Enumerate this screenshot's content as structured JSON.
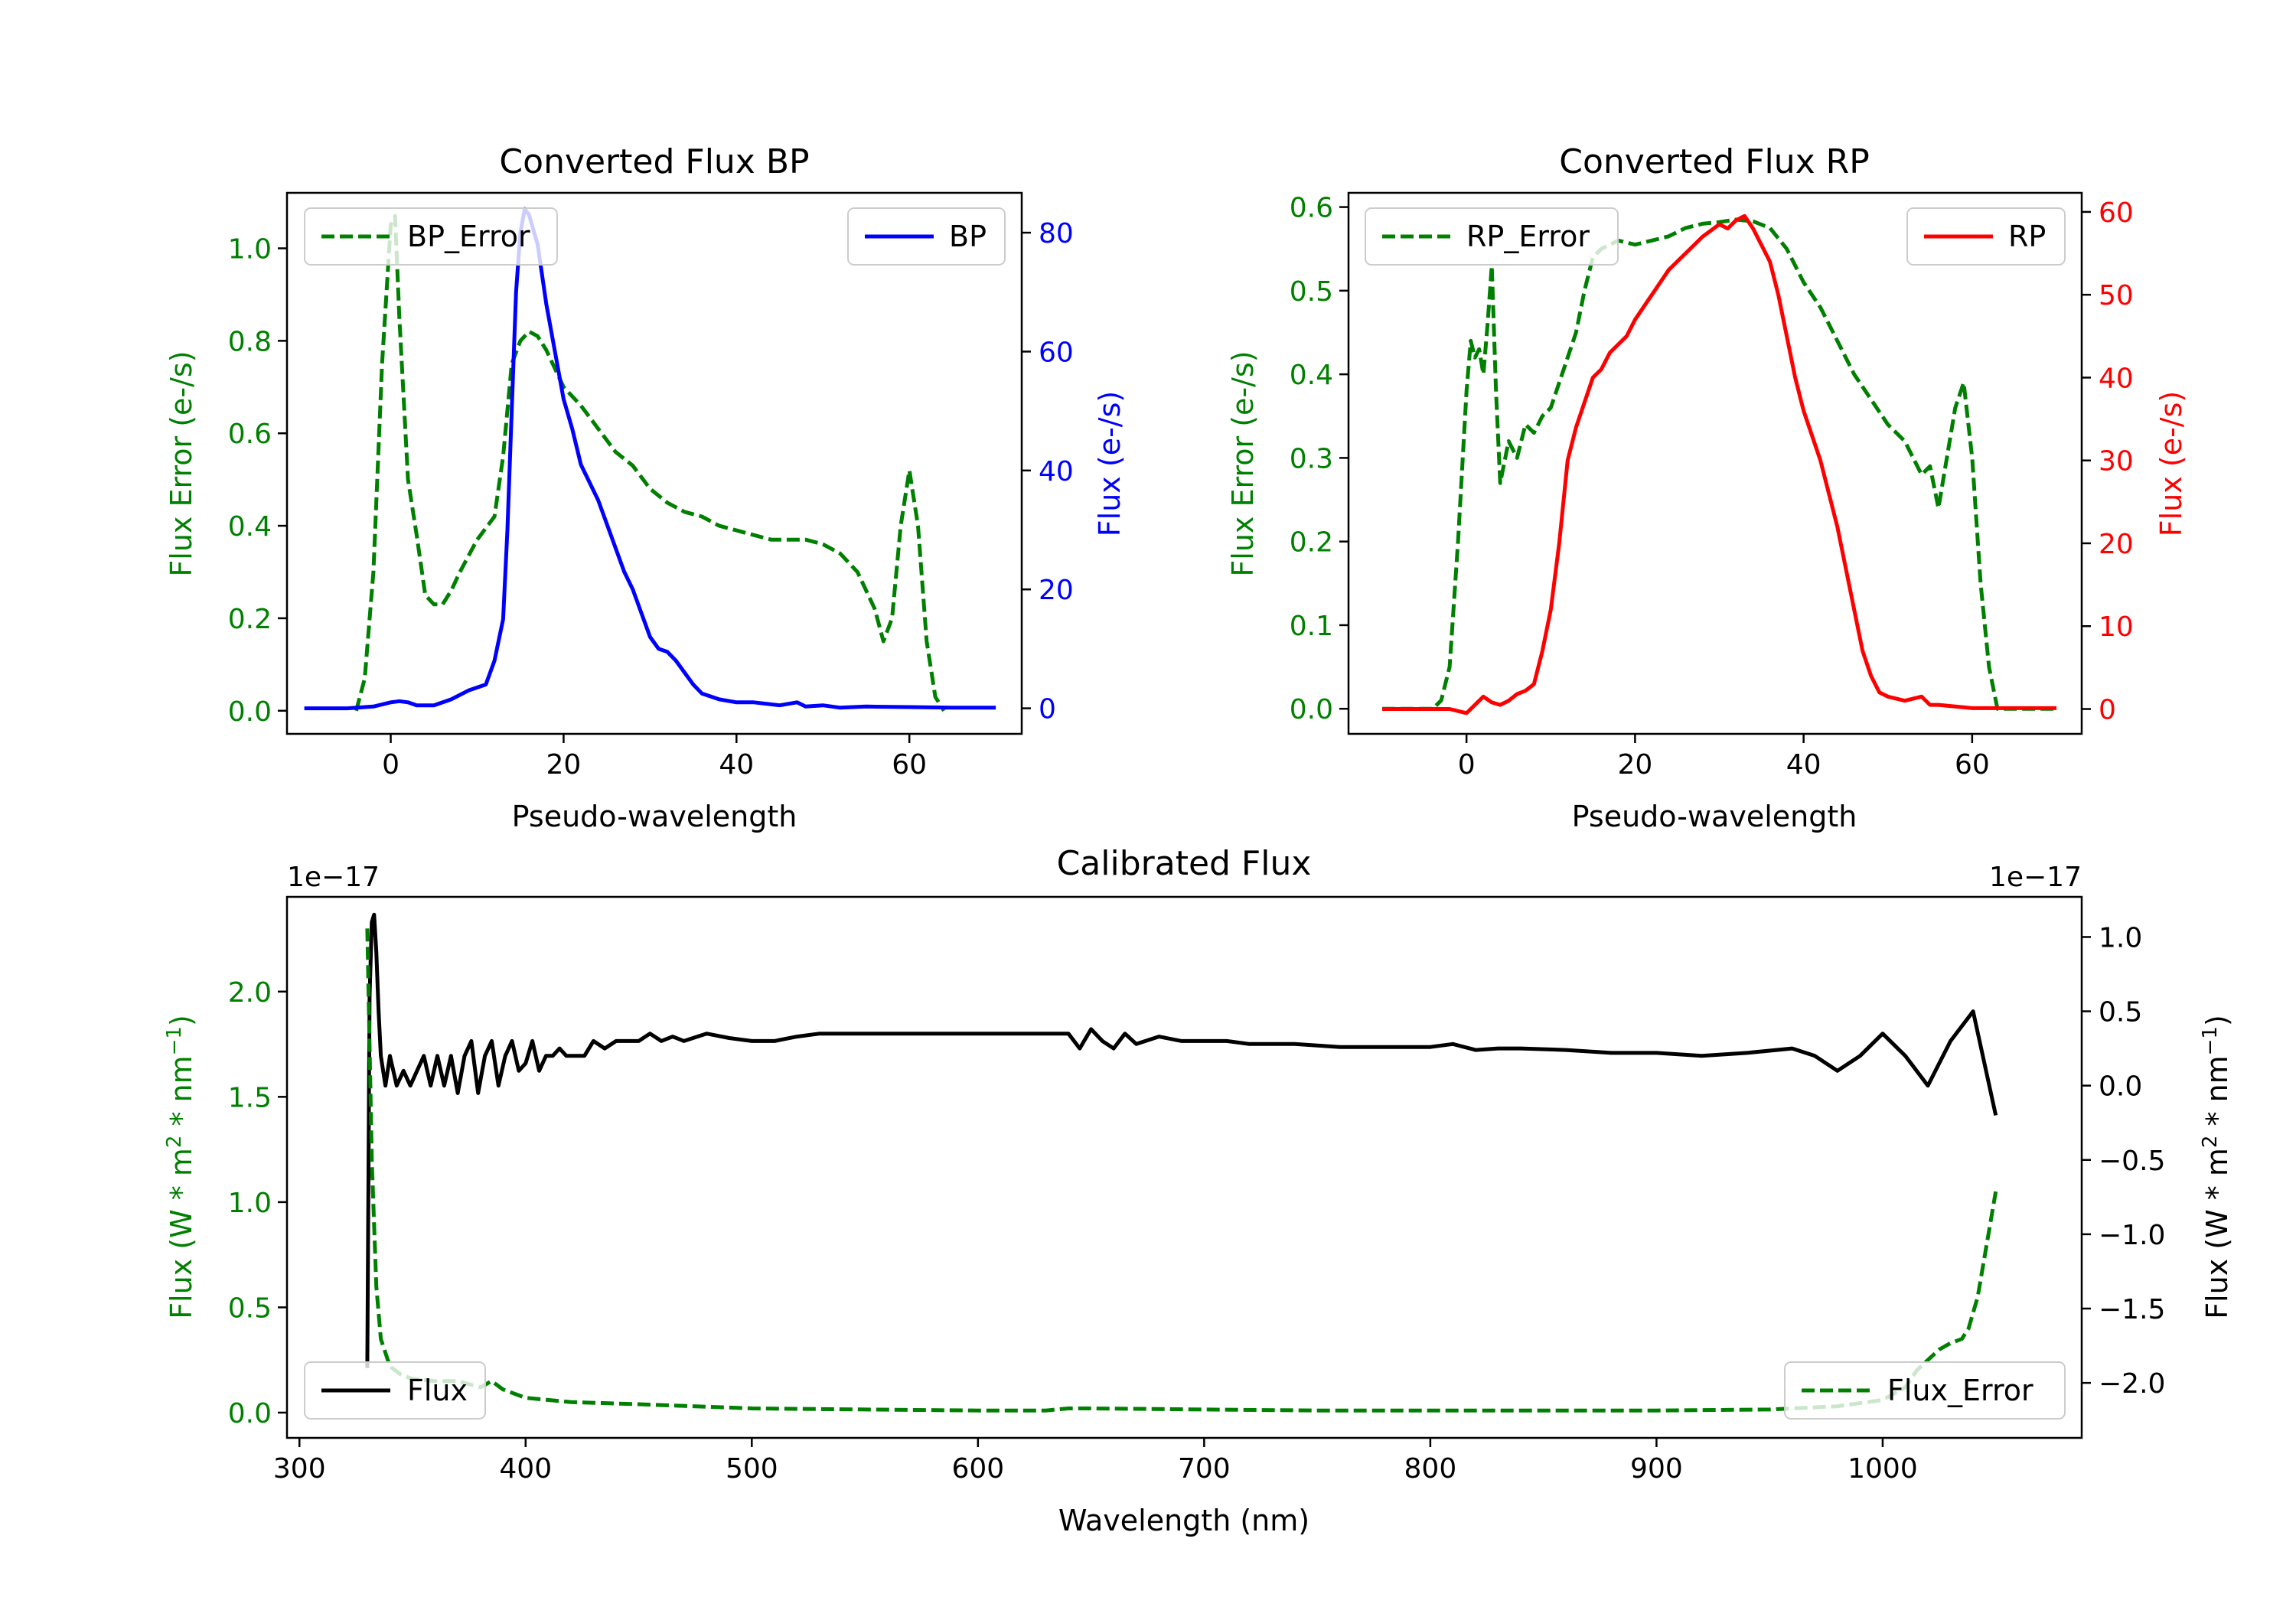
{
  "chart_data": [
    {
      "type": "line",
      "id": "bp",
      "title": "Converted Flux BP",
      "xlabel": "Pseudo-wavelength",
      "xlim": [
        -12,
        73
      ],
      "xticks": [
        0,
        20,
        40,
        60
      ],
      "left_axis": {
        "label": "Flux Error (e-/s)",
        "color": "#008000",
        "ylim": [
          -0.05,
          1.12
        ],
        "ticks": [
          0.0,
          0.2,
          0.4,
          0.6,
          0.8,
          1.0
        ],
        "tick_labels": [
          "0.0",
          "0.2",
          "0.4",
          "0.6",
          "0.8",
          "1.0"
        ]
      },
      "right_axis": {
        "label": "Flux (e-/s)",
        "color": "#0000ff",
        "ylim": [
          -4.3,
          86.7
        ],
        "ticks": [
          0,
          20,
          40,
          60,
          80
        ],
        "tick_labels": [
          "0",
          "20",
          "40",
          "60",
          "80"
        ]
      },
      "series": [
        {
          "name": "BP_Error",
          "axis": "left",
          "color": "#008000",
          "style": "dashed",
          "x": [
            -4,
            -3,
            -2,
            -1,
            0,
            0.5,
            1,
            2,
            3,
            4,
            5,
            6,
            7,
            8,
            10,
            12,
            13,
            14,
            15,
            16,
            17,
            18,
            19,
            20,
            22,
            24,
            26,
            28,
            30,
            32,
            34,
            36,
            38,
            40,
            42,
            44,
            46,
            48,
            50,
            52,
            54,
            56,
            57,
            58,
            59,
            60,
            61,
            62,
            63,
            64
          ],
          "y": [
            0.0,
            0.07,
            0.3,
            0.75,
            1.05,
            1.07,
            0.85,
            0.5,
            0.38,
            0.25,
            0.23,
            0.23,
            0.26,
            0.3,
            0.37,
            0.42,
            0.55,
            0.75,
            0.8,
            0.82,
            0.81,
            0.78,
            0.74,
            0.7,
            0.66,
            0.61,
            0.56,
            0.53,
            0.48,
            0.45,
            0.43,
            0.42,
            0.4,
            0.39,
            0.38,
            0.37,
            0.37,
            0.37,
            0.36,
            0.34,
            0.3,
            0.22,
            0.15,
            0.2,
            0.4,
            0.52,
            0.4,
            0.15,
            0.03,
            0.0
          ]
        },
        {
          "name": "BP",
          "axis": "right",
          "color": "#0000ff",
          "style": "solid",
          "x": [
            -10,
            -5,
            -2,
            0,
            1,
            2,
            3,
            5,
            7,
            9,
            11,
            12,
            13,
            13.5,
            14,
            14.5,
            15,
            15.5,
            16,
            17,
            18,
            19,
            20,
            21,
            22,
            23,
            24,
            25,
            26,
            27,
            28,
            29,
            30,
            31,
            32,
            33,
            34,
            35,
            36,
            38,
            40,
            42,
            45,
            47,
            48,
            50,
            52,
            55,
            60,
            65,
            70
          ],
          "y": [
            0,
            0,
            0.3,
            1,
            1.2,
            1,
            0.5,
            0.5,
            1.5,
            3,
            4,
            8,
            15,
            30,
            50,
            70,
            80,
            84,
            83,
            78,
            68,
            60,
            52,
            47,
            41,
            38,
            35,
            31,
            27,
            23,
            20,
            16,
            12,
            10,
            9.5,
            8,
            6,
            4,
            2.5,
            1.5,
            1,
            1,
            0.5,
            1,
            0.3,
            0.5,
            0.1,
            0.3,
            0.2,
            0.1,
            0.1
          ]
        }
      ]
    },
    {
      "type": "line",
      "id": "rp",
      "title": "Converted Flux RP",
      "xlabel": "Pseudo-wavelength",
      "xlim": [
        -14,
        73
      ],
      "xticks": [
        0,
        20,
        40,
        60
      ],
      "left_axis": {
        "label": "Flux Error (e-/s)",
        "color": "#008000",
        "ylim": [
          -0.03,
          0.617
        ],
        "ticks": [
          0.0,
          0.1,
          0.2,
          0.3,
          0.4,
          0.5,
          0.6
        ],
        "tick_labels": [
          "0.0",
          "0.1",
          "0.2",
          "0.3",
          "0.4",
          "0.5",
          "0.6"
        ]
      },
      "right_axis": {
        "label": "Flux (e-/s)",
        "color": "#ff0000",
        "ylim": [
          -3,
          62.3
        ],
        "ticks": [
          0,
          10,
          20,
          30,
          40,
          50,
          60
        ],
        "tick_labels": [
          "0",
          "10",
          "20",
          "30",
          "40",
          "50",
          "60"
        ]
      },
      "series": [
        {
          "name": "RP_Error",
          "axis": "left",
          "color": "#008000",
          "style": "dashed",
          "x": [
            -10,
            -4,
            -3,
            -2,
            -1,
            0,
            0.5,
            1,
            1.5,
            2,
            2.5,
            3,
            3.5,
            4,
            5,
            6,
            7,
            8,
            9,
            10,
            11,
            12,
            13,
            14,
            15,
            16,
            18,
            20,
            22,
            24,
            26,
            28,
            30,
            32,
            34,
            36,
            38,
            40,
            42,
            44,
            46,
            48,
            50,
            52,
            53,
            54,
            55,
            56,
            57,
            58,
            59,
            60,
            61,
            62,
            63,
            64,
            70
          ],
          "y": [
            0.0,
            0.0,
            0.01,
            0.05,
            0.2,
            0.38,
            0.44,
            0.42,
            0.43,
            0.4,
            0.46,
            0.53,
            0.38,
            0.27,
            0.32,
            0.3,
            0.34,
            0.33,
            0.35,
            0.36,
            0.39,
            0.42,
            0.45,
            0.5,
            0.54,
            0.55,
            0.56,
            0.555,
            0.56,
            0.565,
            0.575,
            0.58,
            0.582,
            0.585,
            0.583,
            0.575,
            0.55,
            0.51,
            0.48,
            0.44,
            0.4,
            0.37,
            0.34,
            0.32,
            0.3,
            0.28,
            0.29,
            0.24,
            0.3,
            0.36,
            0.39,
            0.3,
            0.15,
            0.05,
            0.0,
            0.0,
            0.0
          ]
        },
        {
          "name": "RP",
          "axis": "right",
          "color": "#ff0000",
          "style": "solid",
          "x": [
            -10,
            -5,
            -2,
            0,
            1,
            2,
            3,
            4,
            5,
            6,
            7,
            8,
            9,
            10,
            11,
            12,
            13,
            14,
            15,
            16,
            17,
            18,
            19,
            20,
            22,
            24,
            26,
            28,
            30,
            31,
            32,
            33,
            34,
            35,
            36,
            37,
            38,
            39,
            40,
            42,
            44,
            46,
            47,
            48,
            49,
            50,
            52,
            54,
            55,
            56,
            58,
            60,
            65,
            70
          ],
          "y": [
            0,
            0,
            0,
            -0.5,
            0.5,
            1.5,
            0.8,
            0.5,
            1,
            1.8,
            2.2,
            3,
            7,
            12,
            20,
            30,
            34,
            37,
            40,
            41,
            43,
            44,
            45,
            47,
            50,
            53,
            55,
            57,
            58.5,
            58,
            59,
            59.5,
            58,
            56,
            54,
            50,
            45,
            40,
            36,
            30,
            22,
            12,
            7,
            4,
            2,
            1.5,
            1,
            1.5,
            0.5,
            0.5,
            0.3,
            0.1,
            0.1,
            0.1
          ]
        }
      ]
    },
    {
      "type": "line",
      "id": "cal",
      "title": "Calibrated Flux",
      "xlabel": "Wavelength (nm)",
      "xlim": [
        294.5,
        1088
      ],
      "xticks": [
        300,
        400,
        500,
        600,
        700,
        800,
        900,
        1000
      ],
      "left_axis": {
        "label": "Flux (W * m^2 * nm^-1)",
        "color": "#008000",
        "offset_label": "1e−17",
        "ylim": [
          -0.12,
          2.45
        ],
        "ticks": [
          0.0,
          0.5,
          1.0,
          1.5,
          2.0
        ],
        "tick_labels": [
          "0.0",
          "0.5",
          "1.0",
          "1.5",
          "2.0"
        ]
      },
      "right_axis": {
        "label": "Flux (W * m^2 * nm^-1)",
        "color": "#000000",
        "offset_label": "1e−17",
        "ylim": [
          -2.37,
          1.27
        ],
        "ticks": [
          -2.0,
          -1.5,
          -1.0,
          -0.5,
          0.0,
          0.5,
          1.0
        ],
        "tick_labels": [
          "−2.0",
          "−1.5",
          "−1.0",
          "−0.5",
          "0.0",
          "0.5",
          "1.0"
        ]
      },
      "series": [
        {
          "name": "Flux",
          "axis": "right",
          "color": "#000000",
          "style": "solid",
          "x": [
            330,
            331,
            332,
            333,
            334,
            335,
            336,
            338,
            340,
            343,
            346,
            349,
            352,
            355,
            358,
            361,
            364,
            367,
            370,
            373,
            376,
            379,
            382,
            385,
            388,
            391,
            394,
            397,
            400,
            403,
            406,
            409,
            412,
            415,
            418,
            422,
            426,
            430,
            435,
            440,
            445,
            450,
            455,
            460,
            465,
            470,
            480,
            490,
            500,
            510,
            520,
            530,
            540,
            560,
            580,
            600,
            620,
            640,
            645,
            650,
            655,
            660,
            665,
            670,
            680,
            690,
            700,
            710,
            720,
            740,
            760,
            780,
            800,
            810,
            820,
            830,
            840,
            860,
            880,
            900,
            920,
            940,
            960,
            970,
            980,
            990,
            1000,
            1010,
            1020,
            1030,
            1040,
            1050
          ],
          "y": [
            -1.9,
            0.6,
            1.1,
            1.15,
            0.9,
            0.5,
            0.2,
            0.0,
            0.2,
            0.0,
            0.1,
            0.0,
            0.1,
            0.2,
            0.0,
            0.2,
            0.0,
            0.2,
            -0.05,
            0.2,
            0.3,
            -0.05,
            0.2,
            0.3,
            0.0,
            0.2,
            0.3,
            0.1,
            0.15,
            0.3,
            0.1,
            0.2,
            0.2,
            0.25,
            0.2,
            0.2,
            0.2,
            0.3,
            0.25,
            0.3,
            0.3,
            0.3,
            0.35,
            0.3,
            0.33,
            0.3,
            0.35,
            0.32,
            0.3,
            0.3,
            0.33,
            0.35,
            0.35,
            0.35,
            0.35,
            0.35,
            0.35,
            0.35,
            0.25,
            0.38,
            0.3,
            0.25,
            0.35,
            0.28,
            0.33,
            0.3,
            0.3,
            0.3,
            0.28,
            0.28,
            0.26,
            0.26,
            0.26,
            0.28,
            0.24,
            0.25,
            0.25,
            0.24,
            0.22,
            0.22,
            0.2,
            0.22,
            0.25,
            0.2,
            0.1,
            0.2,
            0.35,
            0.2,
            0.0,
            0.3,
            0.5,
            -0.2
          ]
        },
        {
          "name": "Flux_Error",
          "axis": "left",
          "color": "#008000",
          "style": "dashed",
          "x": [
            330,
            332,
            334,
            336,
            340,
            345,
            350,
            360,
            370,
            380,
            385,
            390,
            400,
            420,
            450,
            500,
            550,
            600,
            630,
            640,
            650,
            700,
            750,
            800,
            850,
            900,
            950,
            980,
            1000,
            1010,
            1015,
            1020,
            1025,
            1030,
            1035,
            1038,
            1042,
            1046,
            1050
          ],
          "y": [
            2.3,
            1.2,
            0.6,
            0.35,
            0.22,
            0.18,
            0.16,
            0.15,
            0.15,
            0.12,
            0.15,
            0.11,
            0.07,
            0.05,
            0.04,
            0.02,
            0.015,
            0.01,
            0.01,
            0.02,
            0.02,
            0.015,
            0.01,
            0.01,
            0.01,
            0.01,
            0.015,
            0.03,
            0.06,
            0.12,
            0.2,
            0.25,
            0.3,
            0.33,
            0.35,
            0.4,
            0.55,
            0.8,
            1.05
          ]
        }
      ]
    }
  ]
}
